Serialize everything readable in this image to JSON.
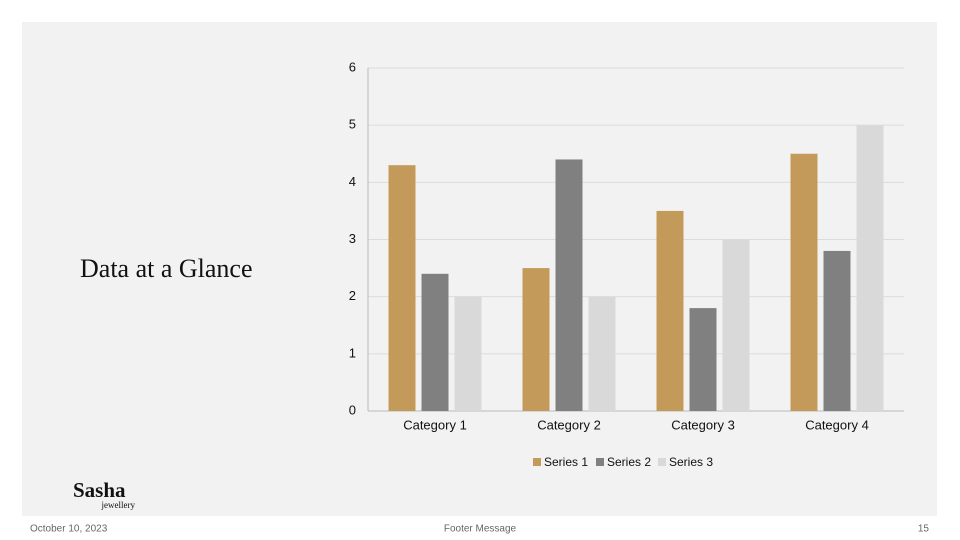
{
  "slide_title": "Data at a Glance",
  "logo": {
    "name": "Sasha",
    "tagline": "jewellery"
  },
  "footer": {
    "date": "October 10, 2023",
    "message": "Footer Message",
    "page": "15"
  },
  "chart_data": {
    "type": "bar",
    "categories": [
      "Category 1",
      "Category 2",
      "Category 3",
      "Category 4"
    ],
    "series": [
      {
        "name": "Series 1",
        "color": "#c49a5a",
        "values": [
          4.3,
          2.5,
          3.5,
          4.5
        ]
      },
      {
        "name": "Series 2",
        "color": "#808080",
        "values": [
          2.4,
          4.4,
          1.8,
          2.8
        ]
      },
      {
        "name": "Series 3",
        "color": "#d9d9d9",
        "values": [
          2,
          2,
          3,
          5
        ]
      }
    ],
    "ylim": [
      0,
      6
    ],
    "yticks": [
      0,
      1,
      2,
      3,
      4,
      5,
      6
    ],
    "grid": true,
    "legend": "bottom"
  }
}
